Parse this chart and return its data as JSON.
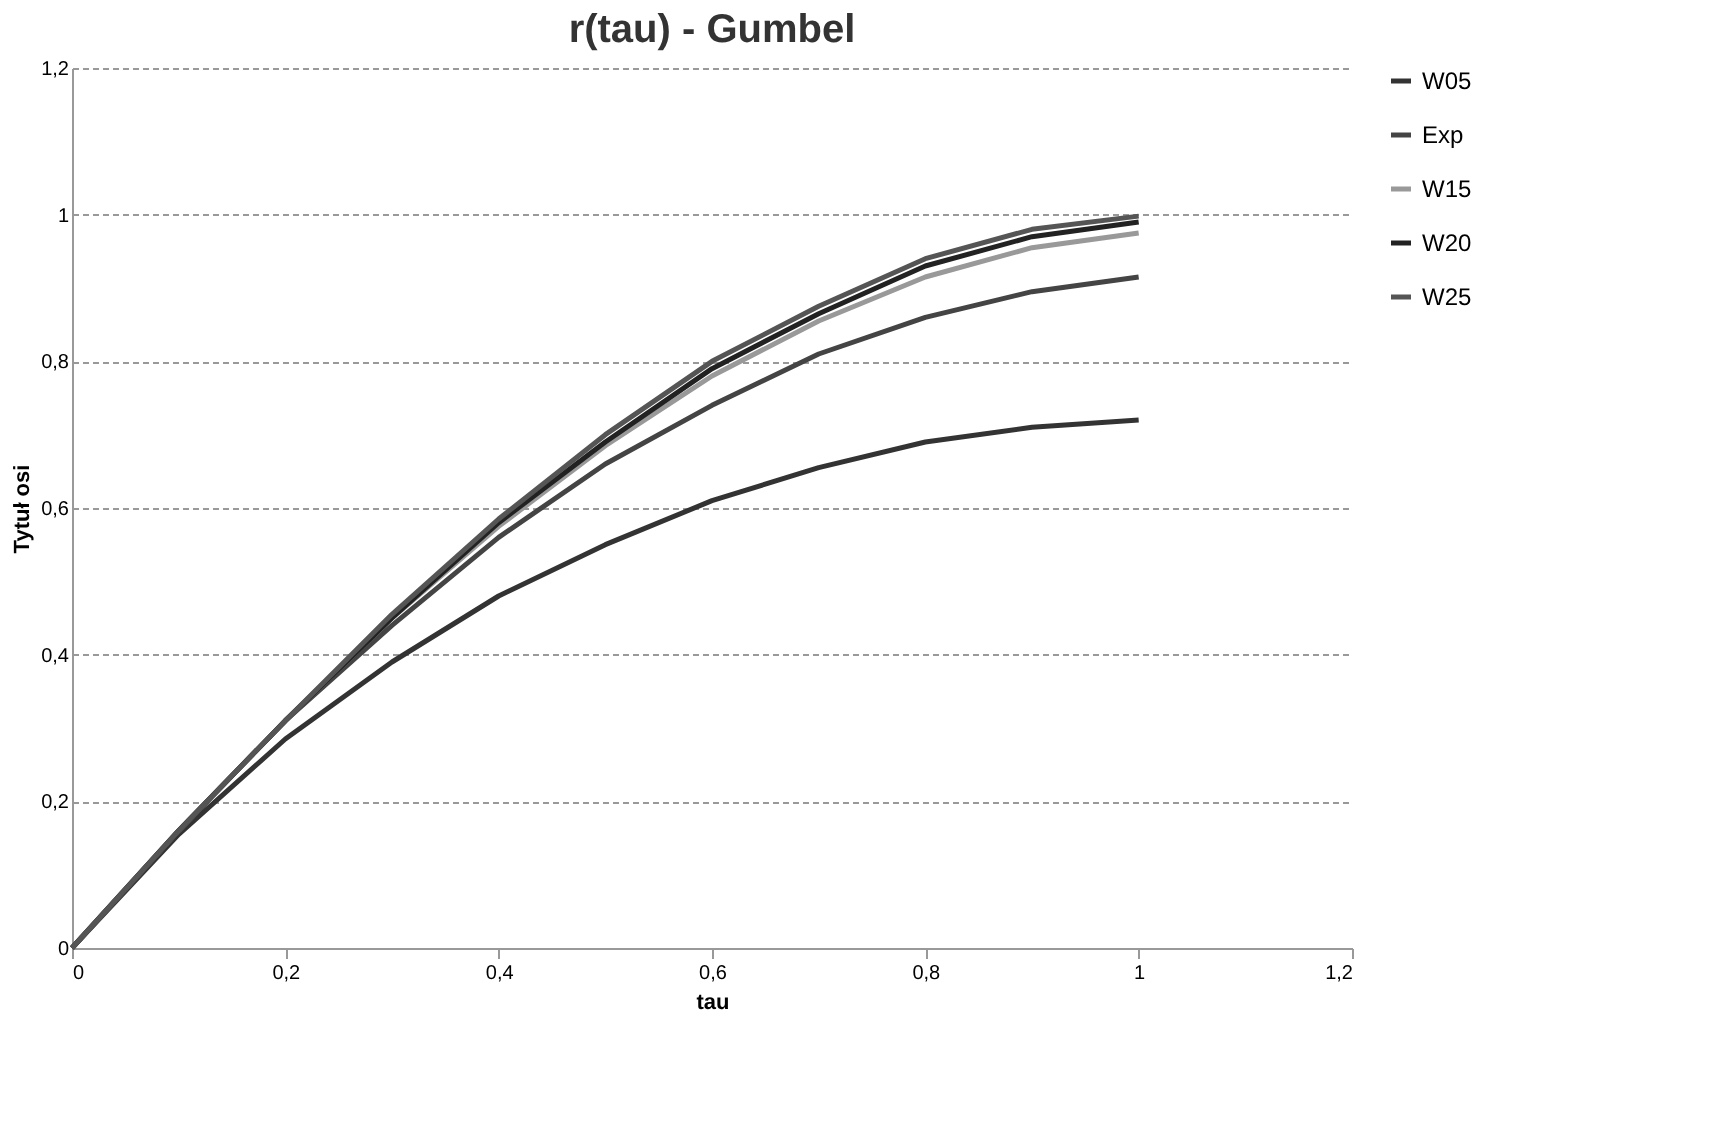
{
  "chart_data": {
    "type": "line",
    "title": "r(tau) - Gumbel",
    "xlabel": "tau",
    "ylabel": "Tytuł osi",
    "x": [
      0,
      0.1,
      0.2,
      0.3,
      0.4,
      0.5,
      0.6,
      0.7,
      0.8,
      0.9,
      1
    ],
    "series": [
      {
        "name": "W05",
        "color": "#333333",
        "values": [
          0,
          0.155,
          0.285,
          0.39,
          0.48,
          0.55,
          0.61,
          0.655,
          0.69,
          0.71,
          0.72
        ]
      },
      {
        "name": "Exp",
        "color": "#444444",
        "values": [
          0,
          0.16,
          0.31,
          0.44,
          0.56,
          0.66,
          0.74,
          0.81,
          0.86,
          0.895,
          0.915
        ]
      },
      {
        "name": "W15",
        "color": "#999999",
        "values": [
          0,
          0.16,
          0.31,
          0.45,
          0.575,
          0.685,
          0.78,
          0.855,
          0.915,
          0.955,
          0.975
        ]
      },
      {
        "name": "W20",
        "color": "#222222",
        "values": [
          0,
          0.16,
          0.31,
          0.45,
          0.58,
          0.69,
          0.79,
          0.865,
          0.93,
          0.97,
          0.99
        ]
      },
      {
        "name": "W25",
        "color": "#555555",
        "values": [
          0,
          0.16,
          0.31,
          0.455,
          0.585,
          0.7,
          0.8,
          0.875,
          0.94,
          0.98,
          0.998
        ]
      }
    ],
    "xlim": [
      0,
      1.2
    ],
    "xticks": [
      0,
      {
        "value": 0.2,
        "label": "0,2"
      },
      {
        "value": 0.4,
        "label": "0,4"
      },
      {
        "value": 0.6,
        "label": "0,6"
      },
      {
        "value": 0.8,
        "label": "0,8"
      },
      1,
      {
        "value": 1.2,
        "label": "1,2"
      }
    ],
    "ylim": [
      0,
      1.2
    ],
    "yticks": [
      0,
      {
        "value": 0.2,
        "label": "0,2"
      },
      {
        "value": 0.4,
        "label": "0,4"
      },
      {
        "value": 0.6,
        "label": "0,6"
      },
      {
        "value": 0.8,
        "label": "0,8"
      },
      1,
      {
        "value": 1.2,
        "label": "1,2"
      }
    ],
    "grid": "y",
    "legend": "right",
    "marker": "none"
  }
}
